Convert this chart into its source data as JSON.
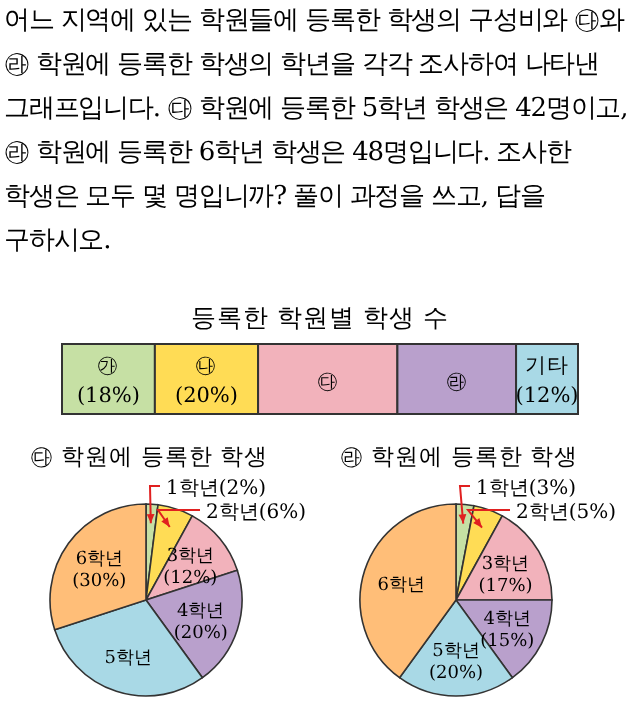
{
  "chart_data": [
    {
      "type": "bar",
      "orientation": "horizontal",
      "stacked": true,
      "title": "등록한 학원별 학생 수",
      "annotations": [
        "어느 지역에 있는 학원들에 등록한 학생의 구성비와 ㉰와 ㉱ 학원에 등록한 학생의 학년을 각각 조사하여 나타낸 그래프입니다. ㉰ 학원에 등록한 5학년 학생은 42명이고, ㉱ 학원에 등록한 6학년 학생은 48명입니다. 조사한 학생은 모두 몇 명입니까? 풀이 과정을 쓰고, 답을 구하시오."
      ],
      "categories": [
        null
      ],
      "xlim": [
        0,
        100
      ],
      "series": [
        {
          "name": "㉮",
          "color": "#c6e0a4",
          "values": [
            18
          ],
          "value_labels": [
            "(18%)"
          ]
        },
        {
          "name": "㉯",
          "color": "#ffdc55",
          "values": [
            20
          ],
          "value_labels": [
            "(20%)"
          ]
        },
        {
          "name": "㉰",
          "color": "#f2b2bb",
          "values": [
            27
          ],
          "value_labels": [
            null
          ]
        },
        {
          "name": "㉱",
          "color": "#b9a0cc",
          "values": [
            23
          ],
          "value_labels": [
            null
          ]
        },
        {
          "name": "기타",
          "color": "#a9d9e6",
          "values": [
            12
          ],
          "value_labels": [
            "(12%)"
          ]
        }
      ]
    },
    {
      "type": "pie",
      "title": "㉰ 학원에 등록한 학생",
      "categories": [
        "1학년",
        "2학년",
        "3학년",
        "4학년",
        "5학년",
        "6학년"
      ],
      "values": [
        2,
        6,
        12,
        20,
        30,
        30
      ],
      "colors": [
        "#c6e0a4",
        "#ffdc55",
        "#f2b2bb",
        "#b9a0cc",
        "#a9d9e6",
        "#ffbe78"
      ],
      "value_labels": [
        "(2%)",
        "(6%)",
        "(12%)",
        "(20%)",
        null,
        "(30%)"
      ]
    },
    {
      "type": "pie",
      "title": "㉱ 학원에 등록한 학생",
      "categories": [
        "1학년",
        "2학년",
        "3학년",
        "4학년",
        "5학년",
        "6학년"
      ],
      "values": [
        3,
        5,
        17,
        15,
        20,
        40
      ],
      "colors": [
        "#c6e0a4",
        "#ffdc55",
        "#f2b2bb",
        "#b9a0cc",
        "#a9d9e6",
        "#ffbe78"
      ],
      "value_labels": [
        "(3%)",
        "(5%)",
        "(17%)",
        "(15%)",
        "(20%)",
        null
      ]
    }
  ]
}
